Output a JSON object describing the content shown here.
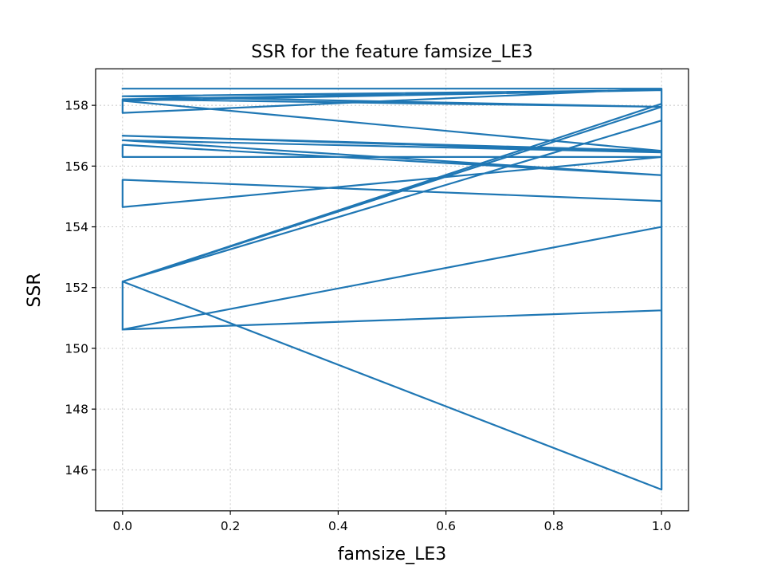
{
  "chart_data": {
    "type": "line",
    "title": "SSR for the feature famsize_LE3",
    "xlabel": "famsize_LE3",
    "ylabel": "SSR",
    "xlim": [
      -0.05,
      1.05
    ],
    "ylim": [
      144.65,
      159.2
    ],
    "xticks": [
      0.0,
      0.2,
      0.4,
      0.6,
      0.8,
      1.0
    ],
    "xtick_labels": [
      "0.0",
      "0.2",
      "0.4",
      "0.6",
      "0.8",
      "1.0"
    ],
    "yticks": [
      146,
      148,
      150,
      152,
      154,
      156,
      158
    ],
    "ytick_labels": [
      "146",
      "148",
      "150",
      "152",
      "154",
      "156",
      "158"
    ],
    "grid": true,
    "color": "#1f77b4",
    "series": [
      {
        "x": [
          0,
          1,
          1,
          0,
          1,
          1,
          0,
          1,
          0,
          0,
          1,
          1,
          0,
          0,
          1,
          1,
          0,
          0,
          0,
          1,
          0,
          0,
          1,
          0,
          0,
          1,
          1,
          0,
          1,
          0,
          0,
          1,
          0,
          0,
          1,
          1,
          0,
          0,
          0,
          1,
          1,
          1,
          0
        ],
        "y": [
          158.55,
          158.55,
          158.5,
          158.2,
          158.5,
          158.05,
          152.2,
          157.5,
          152.2,
          152.2,
          157.95,
          145.35,
          152.2,
          150.62,
          154.0,
          154.85,
          155.55,
          155.55,
          154.65,
          156.3,
          156.3,
          156.7,
          155.7,
          156.85,
          156.85,
          156.45,
          156.45,
          157.0,
          156.5,
          158.15,
          158.15,
          158.5,
          158.3,
          158.3,
          157.95,
          157.95,
          158.2,
          158.2,
          157.75,
          158.55,
          158.55,
          151.25,
          150.62
        ]
      }
    ]
  }
}
